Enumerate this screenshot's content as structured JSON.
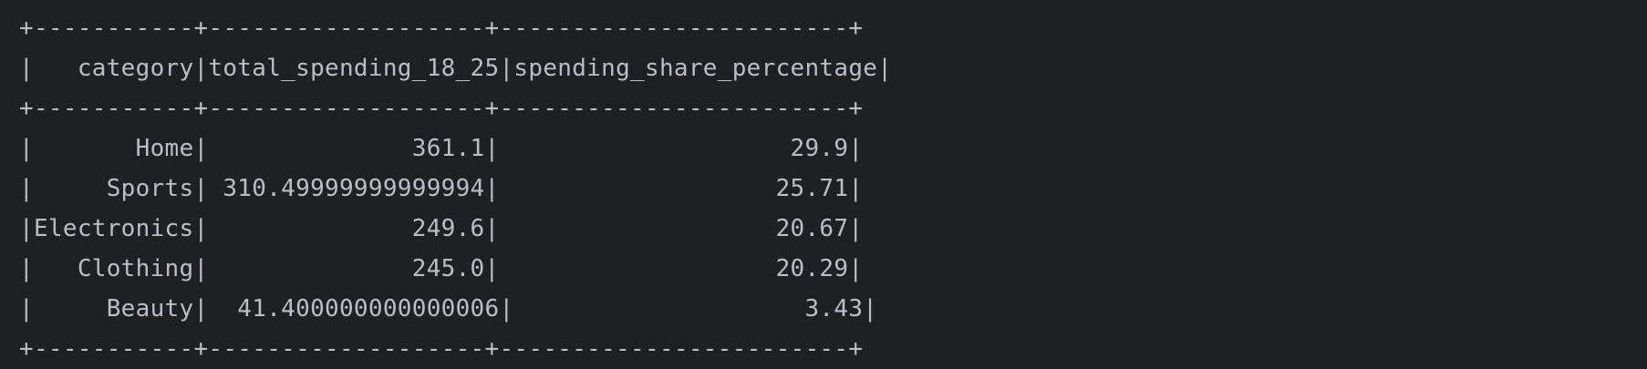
{
  "console": {
    "lines": [
      "+-----------+-------------------+------------------------+",
      "|   category|total_spending_18_25|spending_share_percentage|",
      "+-----------+-------------------+------------------------+",
      "|       Home|              361.1|                    29.9|",
      "|     Sports| 310.49999999999994|                   25.71|",
      "|Electronics|              249.6|                   20.67|",
      "|   Clothing|              245.0|                   20.29|",
      "|     Beauty|  41.400000000000006|                    3.43|",
      "+-----------+-------------------+------------------------+"
    ]
  },
  "colors": {
    "background": "#1f2024",
    "text": "#bdbec4"
  }
}
